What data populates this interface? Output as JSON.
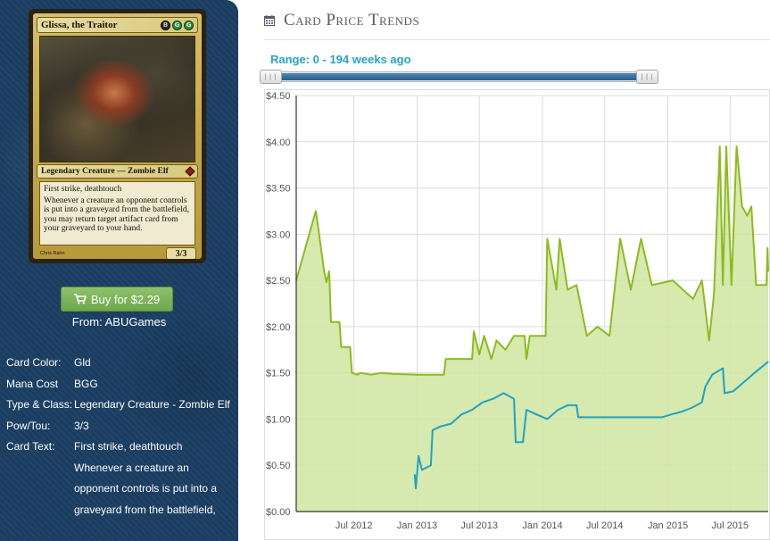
{
  "card": {
    "name": "Glissa, the Traitor",
    "mana_symbols": [
      "B",
      "G",
      "G"
    ],
    "type_line": "Legendary Creature — Zombie Elf",
    "text_lines": [
      "First strike, deathtouch",
      "Whenever a creature an opponent controls is put into a graveyard from the battlefield, you may return target artifact card from your graveyard to your hand."
    ],
    "pt": "3/3",
    "artist": "Chris Rahn"
  },
  "buy": {
    "label": "Buy for $2.29",
    "from": "From: ABUGames"
  },
  "details": [
    {
      "label": "Card Color:",
      "value": "Gld"
    },
    {
      "label": "Mana Cost",
      "value": "BGG"
    },
    {
      "label": "Type & Class:",
      "value": "Legendary Creature - Zombie Elf"
    },
    {
      "label": "Pow/Tou:",
      "value": "3/3"
    },
    {
      "label": "Card Text:",
      "value": "First strike, deathtouch Whenever a creature an opponent controls is put into a graveyard from the battlefield,"
    }
  ],
  "header": {
    "title": "Card Price Trends",
    "icon": "calendar-icon"
  },
  "range": {
    "label": "Range: 0 - 194 weeks ago"
  },
  "colors": {
    "green_series": "#8dbb1e",
    "blue_series": "#1ea3c2",
    "area_fill": "#cfe5a1",
    "accent": "#27a3c6"
  },
  "chart_data": {
    "type": "line",
    "x_tick_labels": [
      "Jul 2012",
      "Jan 2013",
      "Jul 2013",
      "Jan 2014",
      "Jul 2014",
      "Jan 2015",
      "Jul 2015"
    ],
    "y_tick_labels": [
      "$0.00",
      "$0.50",
      "$1.00",
      "$1.50",
      "$2.00",
      "$2.50",
      "$3.00",
      "$3.50",
      "$4.00",
      "$4.50"
    ],
    "ylim": [
      0,
      4.5
    ],
    "xlim": [
      "2012-01-15",
      "2015-10-20"
    ],
    "grid": true,
    "series": [
      {
        "style": "area",
        "points": [
          [
            "2012-01-15",
            2.5
          ],
          [
            "2012-03-12",
            3.25
          ],
          [
            "2012-03-20",
            3.05
          ],
          [
            "2012-04-05",
            2.6
          ],
          [
            "2012-04-12",
            2.48
          ],
          [
            "2012-04-20",
            2.6
          ],
          [
            "2012-04-25",
            2.05
          ],
          [
            "2012-05-20",
            2.05
          ],
          [
            "2012-05-25",
            1.78
          ],
          [
            "2012-06-20",
            1.78
          ],
          [
            "2012-06-25",
            1.5
          ],
          [
            "2012-07-10",
            1.48
          ],
          [
            "2012-07-20",
            1.5
          ],
          [
            "2012-08-20",
            1.48
          ],
          [
            "2012-09-20",
            1.5
          ],
          [
            "2012-10-20",
            1.49
          ],
          [
            "2013-01-05",
            1.48
          ],
          [
            "2013-03-20",
            1.48
          ],
          [
            "2013-03-25",
            1.65
          ],
          [
            "2013-06-10",
            1.65
          ],
          [
            "2013-06-15",
            1.95
          ],
          [
            "2013-07-01",
            1.7
          ],
          [
            "2013-07-15",
            1.9
          ],
          [
            "2013-08-05",
            1.65
          ],
          [
            "2013-08-20",
            1.85
          ],
          [
            "2013-09-15",
            1.75
          ],
          [
            "2013-10-10",
            1.9
          ],
          [
            "2013-11-10",
            1.9
          ],
          [
            "2013-11-15",
            1.65
          ],
          [
            "2013-11-25",
            1.9
          ],
          [
            "2014-01-10",
            1.9
          ],
          [
            "2014-01-15",
            2.95
          ],
          [
            "2014-02-10",
            2.4
          ],
          [
            "2014-02-20",
            2.95
          ],
          [
            "2014-03-15",
            2.4
          ],
          [
            "2014-04-10",
            2.45
          ],
          [
            "2014-05-10",
            1.9
          ],
          [
            "2014-06-10",
            2.0
          ],
          [
            "2014-07-15",
            1.9
          ],
          [
            "2014-08-15",
            2.95
          ],
          [
            "2014-09-15",
            2.4
          ],
          [
            "2014-10-15",
            2.95
          ],
          [
            "2014-11-15",
            2.45
          ],
          [
            "2015-01-15",
            2.5
          ],
          [
            "2015-03-15",
            2.3
          ],
          [
            "2015-04-10",
            2.5
          ],
          [
            "2015-05-01",
            1.85
          ],
          [
            "2015-05-15",
            2.35
          ],
          [
            "2015-06-01",
            3.95
          ],
          [
            "2015-06-10",
            2.45
          ],
          [
            "2015-06-20",
            3.95
          ],
          [
            "2015-07-05",
            2.45
          ],
          [
            "2015-07-20",
            3.95
          ],
          [
            "2015-08-05",
            3.3
          ],
          [
            "2015-08-20",
            3.2
          ],
          [
            "2015-09-01",
            3.3
          ],
          [
            "2015-09-15",
            2.45
          ],
          [
            "2015-10-15",
            2.45
          ],
          [
            "2015-10-18",
            2.85
          ],
          [
            "2015-10-20",
            2.6
          ]
        ]
      },
      {
        "style": "line",
        "points": [
          [
            "2012-12-25",
            0.4
          ],
          [
            "2012-12-28",
            0.25
          ],
          [
            "2013-01-05",
            0.6
          ],
          [
            "2013-01-15",
            0.45
          ],
          [
            "2013-02-10",
            0.5
          ],
          [
            "2013-02-15",
            0.88
          ],
          [
            "2013-03-10",
            0.92
          ],
          [
            "2013-04-10",
            0.95
          ],
          [
            "2013-05-10",
            1.05
          ],
          [
            "2013-06-10",
            1.1
          ],
          [
            "2013-07-10",
            1.18
          ],
          [
            "2013-08-10",
            1.22
          ],
          [
            "2013-09-10",
            1.28
          ],
          [
            "2013-10-10",
            1.22
          ],
          [
            "2013-10-15",
            0.75
          ],
          [
            "2013-11-05",
            0.75
          ],
          [
            "2013-11-15",
            1.1
          ],
          [
            "2013-12-15",
            1.05
          ],
          [
            "2014-01-15",
            1.0
          ],
          [
            "2014-02-15",
            1.1
          ],
          [
            "2014-03-15",
            1.15
          ],
          [
            "2014-04-10",
            1.15
          ],
          [
            "2014-04-15",
            1.02
          ],
          [
            "2014-07-15",
            1.02
          ],
          [
            "2014-10-15",
            1.02
          ],
          [
            "2014-12-15",
            1.02
          ],
          [
            "2015-01-10",
            1.05
          ],
          [
            "2015-02-10",
            1.08
          ],
          [
            "2015-03-10",
            1.12
          ],
          [
            "2015-04-10",
            1.18
          ],
          [
            "2015-04-20",
            1.35
          ],
          [
            "2015-05-10",
            1.48
          ],
          [
            "2015-06-10",
            1.55
          ],
          [
            "2015-06-15",
            1.28
          ],
          [
            "2015-07-10",
            1.3
          ],
          [
            "2015-08-10",
            1.4
          ],
          [
            "2015-09-10",
            1.5
          ],
          [
            "2015-10-20",
            1.62
          ]
        ]
      }
    ]
  }
}
